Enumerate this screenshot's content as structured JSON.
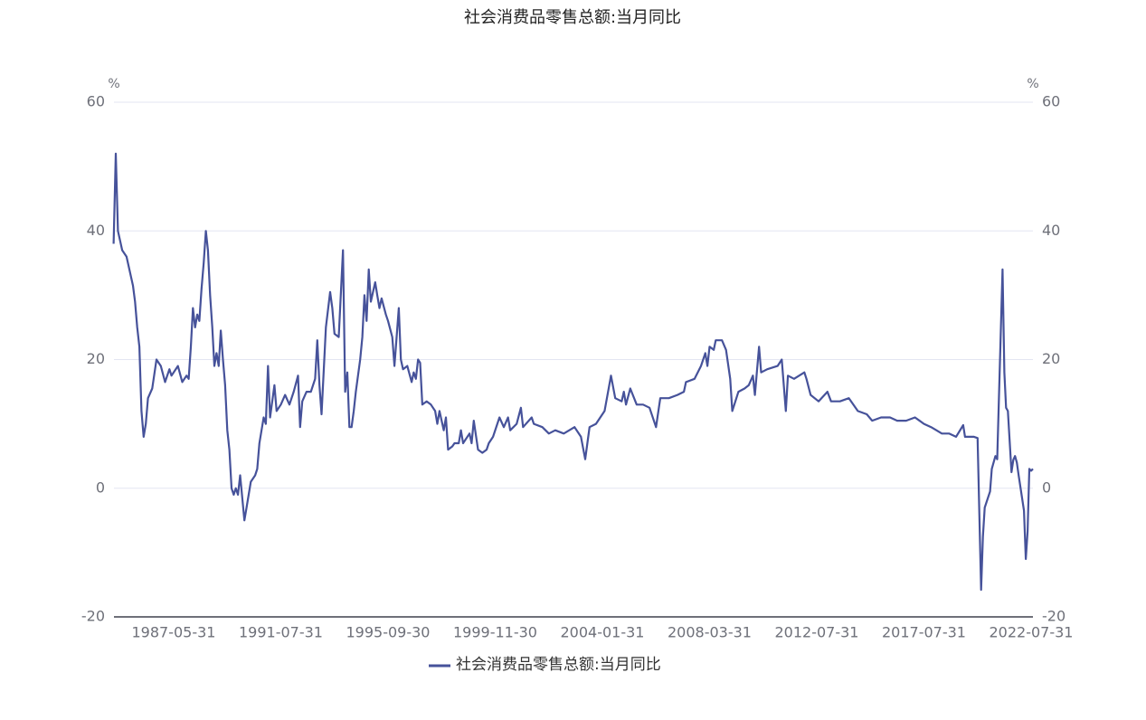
{
  "chart_data": {
    "type": "line",
    "title": "社会消费品零售总额:当月同比",
    "y_unit": "%",
    "y2_unit": "%",
    "x": [
      "1985-01-31",
      "1985-02-28",
      "1985-03-31",
      "1985-05-31",
      "1985-07-31",
      "1985-10-31",
      "1985-11-30",
      "1985-12-31",
      "1986-01-31",
      "1986-02-28",
      "1986-03-31",
      "1986-04-30",
      "1986-05-31",
      "1986-07-31",
      "1986-09-30",
      "1986-11-30",
      "1987-01-31",
      "1987-03-31",
      "1987-04-30",
      "1987-07-31",
      "1987-09-30",
      "1987-11-30",
      "1987-12-31",
      "1988-01-31",
      "1988-02-29",
      "1988-03-31",
      "1988-04-30",
      "1988-05-31",
      "1988-06-30",
      "1988-07-31",
      "1988-08-31",
      "1988-09-30",
      "1988-10-31",
      "1988-11-30",
      "1988-12-31",
      "1989-01-31",
      "1989-02-28",
      "1989-03-31",
      "1989-04-30",
      "1989-05-31",
      "1989-06-30",
      "1989-07-31",
      "1989-08-31",
      "1989-09-30",
      "1989-10-31",
      "1989-11-30",
      "1989-12-31",
      "1990-02-28",
      "1990-03-31",
      "1990-05-31",
      "1990-07-31",
      "1990-08-31",
      "1990-09-30",
      "1990-11-30",
      "1990-12-31",
      "1991-01-31",
      "1991-02-28",
      "1991-04-30",
      "1991-05-31",
      "1991-07-31",
      "1991-09-30",
      "1991-11-30",
      "1992-01-31",
      "1992-03-31",
      "1992-04-30",
      "1992-05-31",
      "1992-07-31",
      "1992-09-30",
      "1992-11-30",
      "1992-12-31",
      "1993-01-31",
      "1993-02-28",
      "1993-04-30",
      "1993-06-30",
      "1993-07-31",
      "1993-08-31",
      "1993-10-31",
      "1993-12-31",
      "1994-01-31",
      "1994-02-28",
      "1994-03-31",
      "1994-04-30",
      "1994-05-31",
      "1994-06-30",
      "1994-08-31",
      "1994-09-30",
      "1994-10-31",
      "1994-11-30",
      "1994-12-31",
      "1995-01-31",
      "1995-03-31",
      "1995-04-30",
      "1995-05-31",
      "1995-06-30",
      "1995-08-31",
      "1995-09-30",
      "1995-11-30",
      "1995-12-31",
      "1996-02-29",
      "1996-03-31",
      "1996-04-30",
      "1996-06-30",
      "1996-08-31",
      "1996-09-30",
      "1996-10-31",
      "1996-11-30",
      "1996-12-31",
      "1997-01-31",
      "1997-03-31",
      "1997-05-31",
      "1997-07-31",
      "1997-08-31",
      "1997-09-30",
      "1997-11-30",
      "1997-12-31",
      "1998-01-31",
      "1998-03-31",
      "1998-04-30",
      "1998-06-30",
      "1998-07-31",
      "1998-08-31",
      "1998-11-30",
      "1998-12-31",
      "1999-01-31",
      "1999-03-31",
      "1999-05-31",
      "1999-07-31",
      "1999-08-31",
      "1999-10-31",
      "2000-01-31",
      "2000-03-31",
      "2000-05-31",
      "2000-06-30",
      "2000-09-30",
      "2000-11-30",
      "2000-12-31",
      "2001-04-30",
      "2001-05-31",
      "2001-09-30",
      "2001-12-31",
      "2002-03-31",
      "2002-07-31",
      "2002-12-31",
      "2003-03-31",
      "2003-05-31",
      "2003-07-31",
      "2003-10-31",
      "2004-02-29",
      "2004-05-31",
      "2004-07-31",
      "2004-10-31",
      "2004-11-30",
      "2004-12-31",
      "2005-02-28",
      "2005-05-31",
      "2005-08-31",
      "2005-11-30",
      "2006-02-28",
      "2006-04-30",
      "2006-08-31",
      "2006-12-31",
      "2007-03-31",
      "2007-04-30",
      "2007-08-31",
      "2007-11-30",
      "2008-01-31",
      "2008-02-29",
      "2008-03-31",
      "2008-05-31",
      "2008-06-30",
      "2008-09-30",
      "2008-11-30",
      "2009-01-31",
      "2009-02-28",
      "2009-05-31",
      "2009-08-31",
      "2009-10-31",
      "2009-12-31",
      "2010-01-31",
      "2010-03-31",
      "2010-04-30",
      "2010-07-31",
      "2010-12-31",
      "2011-02-28",
      "2011-04-30",
      "2011-05-31",
      "2011-08-31",
      "2012-01-31",
      "2012-02-29",
      "2012-04-30",
      "2012-08-31",
      "2013-01-31",
      "2013-03-31",
      "2013-08-31",
      "2014-01-31",
      "2014-06-30",
      "2014-11-30",
      "2015-02-28",
      "2015-07-31",
      "2015-12-31",
      "2016-04-30",
      "2016-09-30",
      "2017-02-28",
      "2017-07-31",
      "2017-11-30",
      "2018-02-28",
      "2018-05-31",
      "2018-09-30",
      "2019-01-31",
      "2019-05-31",
      "2019-06-30",
      "2019-11-30",
      "2020-01-31",
      "2020-03-31",
      "2020-04-30",
      "2020-05-31",
      "2020-08-31",
      "2020-09-30",
      "2020-11-30",
      "2020-12-31",
      "2021-03-31",
      "2021-04-30",
      "2021-05-31",
      "2021-06-30",
      "2021-08-31",
      "2021-09-30",
      "2021-10-31",
      "2021-11-30",
      "2021-12-31",
      "2022-03-31",
      "2022-04-30",
      "2022-05-31",
      "2022-06-30",
      "2022-07-31",
      "2022-08-31"
    ],
    "series": [
      {
        "name": "社会消费品零售总额:当月同比",
        "color": "#46529a",
        "values": [
          38,
          52,
          40,
          37,
          36,
          31.5,
          29,
          25,
          22,
          12,
          8,
          10,
          14,
          15.5,
          20,
          19,
          16.5,
          18.5,
          17.5,
          19,
          16.5,
          17.5,
          17,
          22,
          28,
          25,
          27,
          26,
          31,
          35,
          40,
          37,
          30,
          25,
          19,
          21,
          19,
          24.5,
          20,
          16,
          9,
          6,
          0,
          -1,
          0,
          -1,
          2,
          -5,
          -3,
          1,
          2,
          3,
          7,
          11,
          10,
          19,
          11,
          16,
          12,
          13,
          14.5,
          13,
          15,
          17.5,
          9.5,
          13.5,
          15,
          15,
          17,
          23,
          16,
          11.5,
          25,
          30.5,
          28,
          24,
          23.5,
          37,
          15,
          18,
          9.5,
          9.5,
          12,
          15,
          20,
          23.5,
          30,
          26,
          34,
          29,
          32,
          30,
          28,
          29.5,
          27,
          26,
          23.5,
          19,
          28,
          20,
          18.5,
          19,
          16.5,
          18,
          17,
          20,
          19.5,
          13,
          13.5,
          13,
          12,
          10,
          12,
          9,
          11,
          6,
          6.5,
          7,
          7,
          9,
          7,
          8.5,
          7,
          10.5,
          6,
          5.5,
          6,
          7,
          8,
          11,
          9.5,
          11,
          9,
          10,
          12.5,
          9.5,
          11,
          10,
          9.5,
          8.5,
          9,
          8.5,
          9.5,
          8,
          4.5,
          9.5,
          10,
          12,
          17.5,
          14,
          13.5,
          15,
          13,
          15.5,
          13,
          13,
          12.5,
          9.5,
          14,
          14,
          14.5,
          15,
          16.5,
          17,
          19,
          21,
          19,
          22,
          21.5,
          23,
          23,
          21.5,
          17,
          12,
          15,
          15.5,
          16,
          17.5,
          14.5,
          22,
          18,
          18.5,
          19,
          20,
          12,
          17.5,
          17,
          18,
          17,
          14.5,
          13.5,
          15,
          13.5,
          13.5,
          14,
          12,
          11.5,
          10.5,
          11,
          11,
          10.5,
          10.5,
          11,
          10,
          9.5,
          9,
          8.5,
          8.5,
          8,
          9.8,
          8,
          8,
          7.8,
          -15.8,
          -7.5,
          -3,
          -0.5,
          3,
          5,
          4.5,
          34,
          18,
          12.5,
          12,
          2.5,
          4.4,
          5,
          4,
          2,
          -3.5,
          -11,
          -6.7,
          3,
          2.7,
          3
        ]
      }
    ],
    "xticks": [
      "1987-05-31",
      "1991-07-31",
      "1995-09-30",
      "1999-11-30",
      "2004-01-31",
      "2008-03-31",
      "2012-07-31",
      "2017-07-31",
      "2022-07-31"
    ],
    "ylim": [
      -20,
      60
    ],
    "yticks": [
      -20,
      0,
      20,
      40,
      60
    ],
    "y2lim": [
      -20,
      60
    ],
    "y2ticks": [
      -20,
      0,
      20,
      40,
      60
    ],
    "grid": true,
    "legend": "bottom"
  }
}
